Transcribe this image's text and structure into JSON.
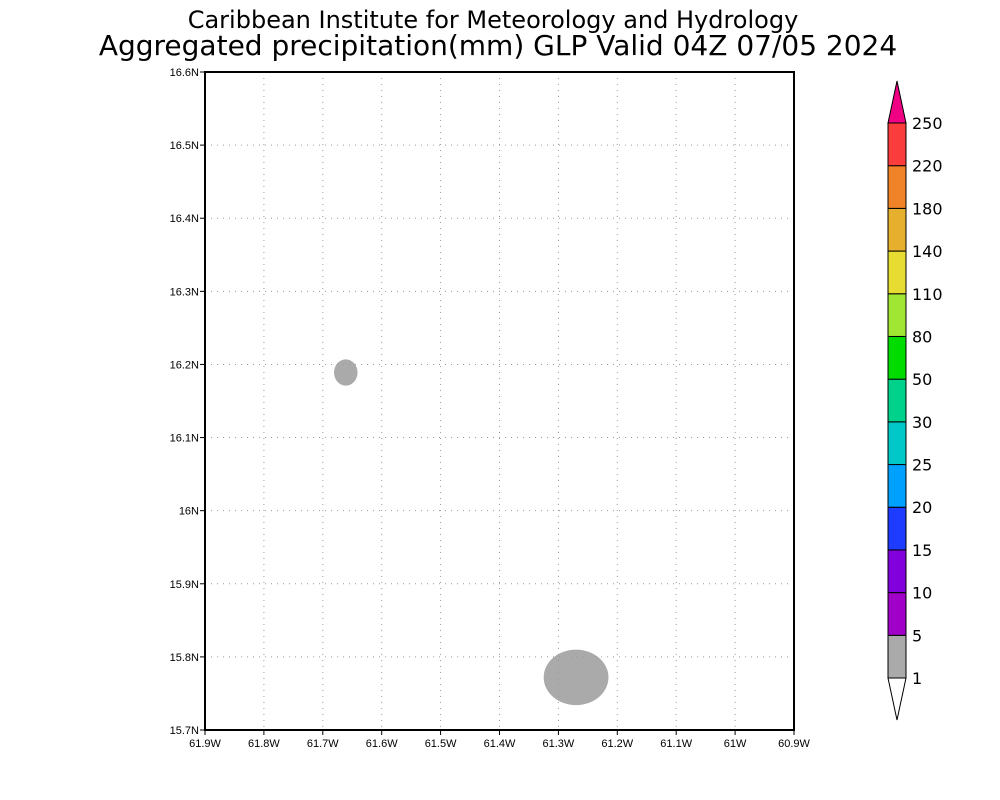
{
  "title": {
    "line1": "Caribbean Institute for Meteorology and Hydrology",
    "line2": "Aggregated precipitation(mm) GLP Valid 04Z 07/05 2024"
  },
  "map": {
    "lon_range": [
      -61.9,
      -60.9
    ],
    "lat_range": [
      15.7,
      16.6
    ],
    "grid": true,
    "x_ticks": [
      {
        "value": -61.9,
        "label": "61.9W"
      },
      {
        "value": -61.8,
        "label": "61.8W"
      },
      {
        "value": -61.7,
        "label": "61.7W"
      },
      {
        "value": -61.6,
        "label": "61.6W"
      },
      {
        "value": -61.5,
        "label": "61.5W"
      },
      {
        "value": -61.4,
        "label": "61.4W"
      },
      {
        "value": -61.3,
        "label": "61.3W"
      },
      {
        "value": -61.2,
        "label": "61.2W"
      },
      {
        "value": -61.1,
        "label": "61.1W"
      },
      {
        "value": -61.0,
        "label": "61W"
      },
      {
        "value": -60.9,
        "label": "60.9W"
      }
    ],
    "y_ticks": [
      {
        "value": 15.7,
        "label": "15.7N"
      },
      {
        "value": 15.8,
        "label": "15.8N"
      },
      {
        "value": 15.9,
        "label": "15.9N"
      },
      {
        "value": 16.0,
        "label": "16N"
      },
      {
        "value": 16.1,
        "label": "16.1N"
      },
      {
        "value": 16.2,
        "label": "16.2N"
      },
      {
        "value": 16.3,
        "label": "16.3N"
      },
      {
        "value": 16.4,
        "label": "16.4N"
      },
      {
        "value": 16.5,
        "label": "16.5N"
      },
      {
        "value": 16.6,
        "label": "16.6N"
      }
    ],
    "precip_areas": [
      {
        "lon": -61.661,
        "lat": 16.189,
        "lon_radius": 0.02,
        "lat_radius": 0.018,
        "category": "1-5",
        "color": "#aaaaaa"
      },
      {
        "lon": -61.27,
        "lat": 15.772,
        "lon_radius": 0.055,
        "lat_radius": 0.038,
        "category": "1-5",
        "color": "#aaaaaa"
      }
    ]
  },
  "colorbar": {
    "levels": [
      {
        "label": "1",
        "color": "#aaaaaa"
      },
      {
        "label": "5",
        "color": "#a000c8"
      },
      {
        "label": "10",
        "color": "#8200dc"
      },
      {
        "label": "15",
        "color": "#1e3cff"
      },
      {
        "label": "20",
        "color": "#00a0ff"
      },
      {
        "label": "25",
        "color": "#00c8c8"
      },
      {
        "label": "30",
        "color": "#00d28c"
      },
      {
        "label": "50",
        "color": "#00dc00"
      },
      {
        "label": "80",
        "color": "#a0e632"
      },
      {
        "label": "110",
        "color": "#e6dc32"
      },
      {
        "label": "140",
        "color": "#e6af2d"
      },
      {
        "label": "180",
        "color": "#f08228"
      },
      {
        "label": "220",
        "color": "#fa3c3c"
      },
      {
        "label": "250",
        "color": "#f00082"
      }
    ],
    "under_color": "#ffffff",
    "over_color": "#f00082"
  }
}
